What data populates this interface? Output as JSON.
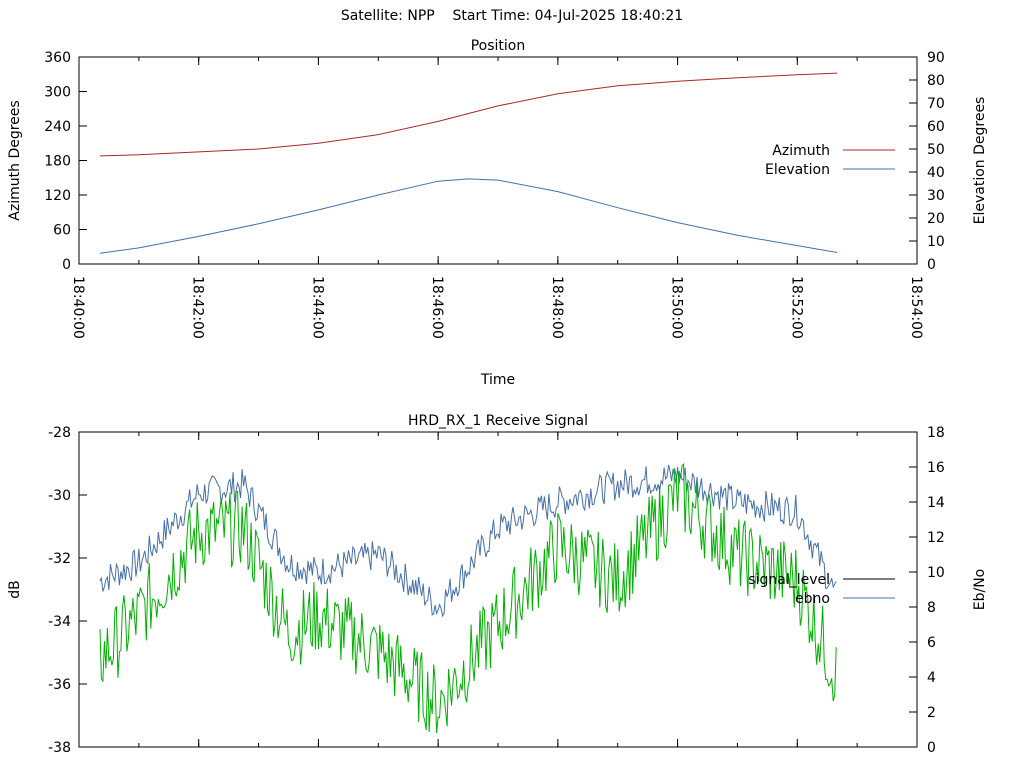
{
  "header": {
    "satellite_text": "Satellite: NPP",
    "start_time_text": "Start Time: 04-Jul-2025 18:40:21"
  },
  "chart_data": [
    {
      "type": "line",
      "title": "Position",
      "xlabel": "Time",
      "ylabel": "Azimuth Degrees",
      "y2label": "Elevation Degrees",
      "xlim": [
        "18:40:00",
        "18:54:00"
      ],
      "ylim": [
        0,
        360
      ],
      "y2lim": [
        0,
        90
      ],
      "x_ticks": [
        "18:40:00",
        "18:42:00",
        "18:44:00",
        "18:46:00",
        "18:48:00",
        "18:50:00",
        "18:52:00",
        "18:54:00"
      ],
      "y_ticks": [
        "0",
        "60",
        "120",
        "180",
        "240",
        "300",
        "360"
      ],
      "y2_ticks": [
        "0",
        "10",
        "20",
        "30",
        "40",
        "50",
        "60",
        "70",
        "80",
        "90"
      ],
      "legend_position": "right",
      "series": [
        {
          "name": "Azimuth",
          "axis": "y",
          "color": "#a52a2a",
          "x": [
            "18:40:21",
            "18:41:00",
            "18:42:00",
            "18:43:00",
            "18:44:00",
            "18:45:00",
            "18:46:00",
            "18:47:00",
            "18:48:00",
            "18:49:00",
            "18:50:00",
            "18:51:00",
            "18:52:00",
            "18:52:40"
          ],
          "values": [
            188,
            190,
            195,
            200,
            210,
            225,
            248,
            275,
            296,
            310,
            318,
            324,
            329,
            332
          ]
        },
        {
          "name": "Elevation",
          "axis": "y2",
          "color": "#4670a8",
          "x": [
            "18:40:21",
            "18:41:00",
            "18:42:00",
            "18:43:00",
            "18:44:00",
            "18:45:00",
            "18:46:00",
            "18:46:30",
            "18:47:00",
            "18:48:00",
            "18:49:00",
            "18:50:00",
            "18:51:00",
            "18:52:00",
            "18:52:40"
          ],
          "values": [
            4.7,
            7,
            12,
            17.5,
            23.5,
            30,
            36,
            37,
            36.5,
            31.5,
            24.5,
            18,
            12.5,
            8,
            5
          ]
        }
      ]
    },
    {
      "type": "line",
      "title": "HRD_RX_1 Receive Signal",
      "xlabel": "",
      "ylabel": "dB",
      "y2label": "Eb/No",
      "xlim": [
        "18:40:00",
        "18:54:00"
      ],
      "ylim": [
        -38,
        -28
      ],
      "y2lim": [
        0,
        18
      ],
      "y_ticks": [
        "-28",
        "-30",
        "-32",
        "-34",
        "-36",
        "-38"
      ],
      "y2_ticks": [
        "0",
        "2",
        "4",
        "6",
        "8",
        "10",
        "12",
        "14",
        "16",
        "18"
      ],
      "legend_position": "right",
      "series": [
        {
          "name": "signal_level",
          "axis": "y",
          "color": "#000000",
          "x": [],
          "values": []
        },
        {
          "name": "ebno",
          "axis": "y2",
          "color": "#4670a8",
          "x": [
            "18:40:21",
            "18:41:00",
            "18:42:00",
            "18:42:45",
            "18:43:30",
            "18:44:00",
            "18:45:00",
            "18:46:00",
            "18:47:00",
            "18:48:00",
            "18:49:00",
            "18:50:00",
            "18:51:00",
            "18:52:00",
            "18:52:40"
          ],
          "values": [
            9.5,
            10.5,
            14.5,
            15.0,
            10.5,
            10.0,
            11.0,
            8.0,
            12.5,
            14.0,
            15.0,
            15.5,
            14.0,
            13.5,
            8.5
          ]
        },
        {
          "name": "",
          "axis": "y2",
          "color": "#00b000",
          "x": [
            "18:40:21",
            "18:41:00",
            "18:42:00",
            "18:42:45",
            "18:43:30",
            "18:44:00",
            "18:45:00",
            "18:46:00",
            "18:47:00",
            "18:48:00",
            "18:49:00",
            "18:50:00",
            "18:51:00",
            "18:52:00",
            "18:52:40"
          ],
          "values": [
            5,
            7.5,
            12.3,
            12.5,
            6.5,
            7.5,
            5.5,
            2.5,
            7.0,
            11.5,
            9.5,
            14.5,
            11.0,
            9.5,
            4.0
          ]
        }
      ]
    }
  ]
}
